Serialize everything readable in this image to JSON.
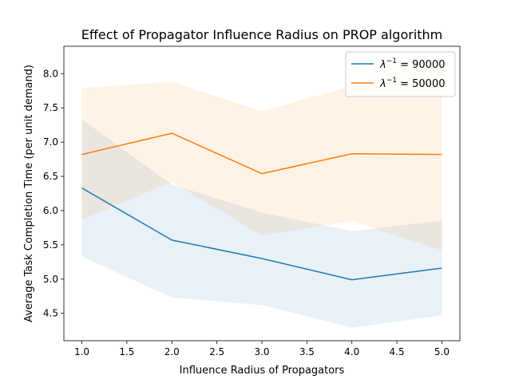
{
  "chart_data": {
    "type": "line",
    "title": "Effect of Propagator Influence Radius on PROP algorithm",
    "xlabel": "Influence Radius of Propagators",
    "ylabel": "Average Task Completion Time (per unit demand)",
    "xlim": [
      0.8,
      5.2
    ],
    "ylim": [
      4.1,
      8.4
    ],
    "x": [
      1.0,
      2.0,
      3.0,
      4.0,
      5.0
    ],
    "xticks": [
      1.0,
      1.5,
      2.0,
      2.5,
      3.0,
      3.5,
      4.0,
      4.5,
      5.0
    ],
    "xtick_labels": [
      "1.0",
      "1.5",
      "2.0",
      "2.5",
      "3.0",
      "3.5",
      "4.0",
      "4.5",
      "5.0"
    ],
    "yticks": [
      4.5,
      5.0,
      5.5,
      6.0,
      6.5,
      7.0,
      7.5,
      8.0
    ],
    "ytick_labels": [
      "4.5",
      "5.0",
      "5.5",
      "6.0",
      "6.5",
      "7.0",
      "7.5",
      "8.0"
    ],
    "grid": false,
    "legend_position": "top-right",
    "series": [
      {
        "name": "λ⁻¹ = 90000",
        "legend_base": "λ",
        "legend_sup": "−1",
        "legend_rest": " = 90000",
        "color": "#1f77b4",
        "values": [
          6.33,
          5.57,
          5.3,
          4.99,
          5.16
        ],
        "lower": [
          5.33,
          4.73,
          4.62,
          4.29,
          4.47
        ],
        "upper": [
          7.33,
          6.38,
          5.97,
          5.7,
          5.85
        ]
      },
      {
        "name": "λ⁻¹ = 50000",
        "legend_base": "λ",
        "legend_sup": "−1",
        "legend_rest": " = 50000",
        "color": "#ff7f0e",
        "values": [
          6.82,
          7.13,
          6.54,
          6.83,
          6.82
        ],
        "lower": [
          5.87,
          6.42,
          5.64,
          5.85,
          5.42
        ],
        "upper": [
          7.79,
          7.88,
          7.45,
          7.82,
          8.22
        ]
      }
    ]
  }
}
